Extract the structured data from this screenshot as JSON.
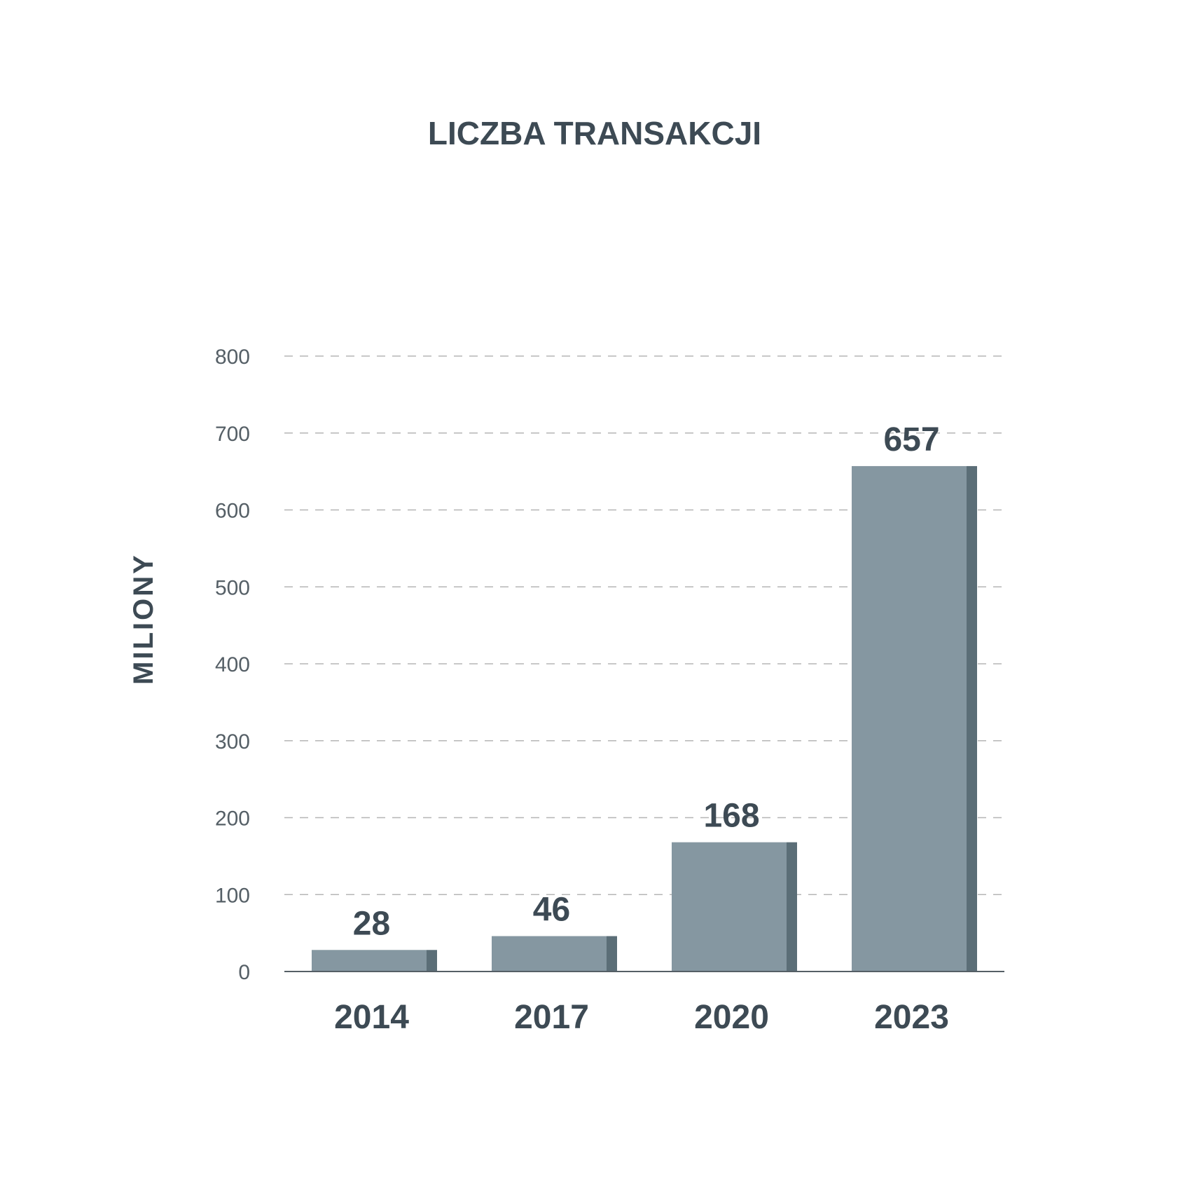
{
  "chart_data": {
    "type": "bar",
    "title": "LICZBA TRANSAKCJI",
    "xlabel": "",
    "ylabel": "MILIONY",
    "categories": [
      "2014",
      "2017",
      "2020",
      "2023"
    ],
    "values": [
      28,
      46,
      168,
      657
    ],
    "value_labels": [
      "28",
      "46",
      "168",
      "657"
    ],
    "ylim": [
      0,
      800
    ],
    "yticks": [
      0,
      100,
      200,
      300,
      400,
      500,
      600,
      700,
      800
    ],
    "grid": true,
    "legend": "none",
    "colors": {
      "bar_front": "#8597a1",
      "bar_side": "#5b6e77",
      "text": "#3d4a54",
      "grid": "#b5b5b5"
    }
  }
}
